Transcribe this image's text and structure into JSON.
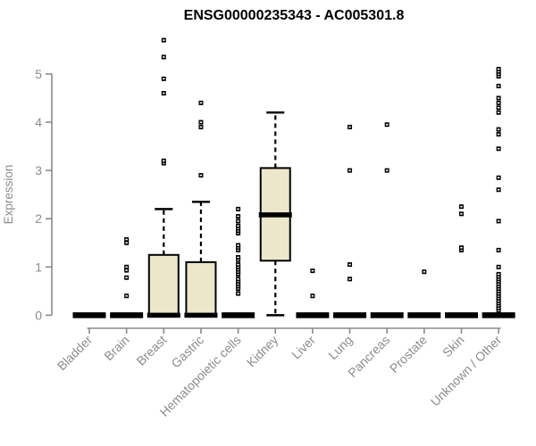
{
  "chart_data": {
    "type": "boxplot",
    "title": "ENSG00000235343 - AC005301.8",
    "ylabel": "Expression",
    "xlabel": "",
    "ylim": [
      0,
      5
    ],
    "yticks": [
      0,
      1,
      2,
      3,
      4,
      5
    ],
    "grid": false,
    "legend": false,
    "colors": {
      "box_fill": "#ece7ca",
      "box_stroke": "#000000",
      "median": "#000000",
      "outlier": "#000000",
      "axis": "#8a8a8a",
      "tick_label": "#8c8c8c",
      "title": "#000000",
      "background": "#ffffff"
    },
    "categories": [
      "Bladder",
      "Brain",
      "Breast",
      "Gastric",
      "Hematopoietic cells",
      "Kidney",
      "Liver",
      "Lung",
      "Pancreas",
      "Prostate",
      "Skin",
      "Unknown / Other"
    ],
    "series": [
      {
        "name": "Bladder",
        "q1": 0,
        "median": 0,
        "q3": 0,
        "whisker_low": 0,
        "whisker_high": 0,
        "outliers": []
      },
      {
        "name": "Brain",
        "q1": 0,
        "median": 0,
        "q3": 0,
        "whisker_low": 0,
        "whisker_high": 0,
        "outliers": [
          0.4,
          0.78,
          0.93,
          1.0,
          1.5,
          1.57
        ]
      },
      {
        "name": "Breast",
        "q1": 0,
        "median": 0,
        "q3": 1.25,
        "whisker_low": 0,
        "whisker_high": 2.2,
        "outliers": [
          3.15,
          3.2,
          4.6,
          4.9,
          5.35,
          5.7
        ]
      },
      {
        "name": "Gastric",
        "q1": 0,
        "median": 0,
        "q3": 1.1,
        "whisker_low": 0,
        "whisker_high": 2.35,
        "outliers": [
          2.9,
          3.9,
          4.0,
          4.4
        ]
      },
      {
        "name": "Hematopoietic cells",
        "q1": 0,
        "median": 0,
        "q3": 0,
        "whisker_low": 0,
        "whisker_high": 0,
        "outliers": [
          0.45,
          0.55,
          0.6,
          0.65,
          0.7,
          0.75,
          0.85,
          0.9,
          0.95,
          1.0,
          1.05,
          1.15,
          1.2,
          1.35,
          1.4,
          1.45,
          1.7,
          1.75,
          1.8,
          1.85,
          1.95,
          2.05,
          2.2
        ]
      },
      {
        "name": "Kidney",
        "q1": 1.13,
        "median": 2.08,
        "q3": 3.05,
        "whisker_low": 0,
        "whisker_high": 4.2,
        "outliers": []
      },
      {
        "name": "Liver",
        "q1": 0,
        "median": 0,
        "q3": 0,
        "whisker_low": 0,
        "whisker_high": 0,
        "outliers": [
          0.4,
          0.92
        ]
      },
      {
        "name": "Lung",
        "q1": 0,
        "median": 0,
        "q3": 0,
        "whisker_low": 0,
        "whisker_high": 0,
        "outliers": [
          0.75,
          1.05,
          3.0,
          3.9
        ]
      },
      {
        "name": "Pancreas",
        "q1": 0,
        "median": 0,
        "q3": 0,
        "whisker_low": 0,
        "whisker_high": 0,
        "outliers": [
          3.0,
          3.95
        ]
      },
      {
        "name": "Prostate",
        "q1": 0,
        "median": 0,
        "q3": 0,
        "whisker_low": 0,
        "whisker_high": 0,
        "outliers": [
          0.9
        ]
      },
      {
        "name": "Skin",
        "q1": 0,
        "median": 0,
        "q3": 0,
        "whisker_low": 0,
        "whisker_high": 0,
        "outliers": [
          1.35,
          1.4,
          2.1,
          2.25
        ]
      },
      {
        "name": "Unknown / Other",
        "q1": 0,
        "median": 0,
        "q3": 0,
        "whisker_low": 0,
        "whisker_high": 0,
        "outliers": [
          0.1,
          0.15,
          0.2,
          0.25,
          0.3,
          0.35,
          0.4,
          0.45,
          0.5,
          0.55,
          0.6,
          0.65,
          0.7,
          0.75,
          0.8,
          0.85,
          1.0,
          1.35,
          1.95,
          2.6,
          2.85,
          3.45,
          3.75,
          3.85,
          4.2,
          4.3,
          4.4,
          4.5,
          4.75,
          4.95,
          5.0,
          5.05,
          5.1
        ]
      }
    ]
  }
}
